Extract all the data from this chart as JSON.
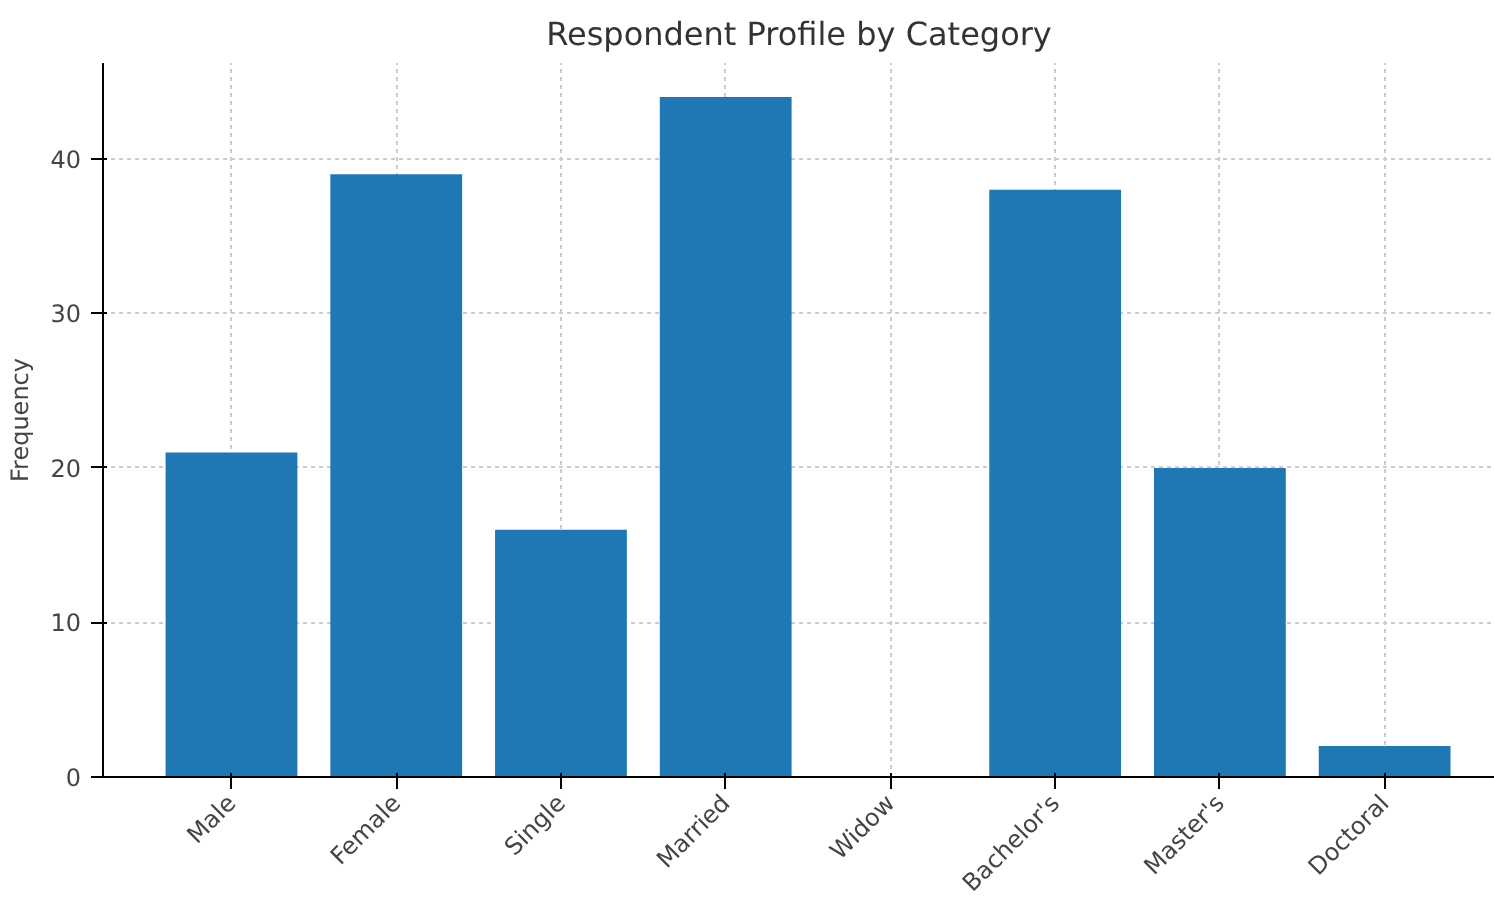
{
  "chart_data": {
    "type": "bar",
    "title": "Respondent Profile by Category",
    "ylabel": "Frequency",
    "categories": [
      "Male",
      "Female",
      "Single",
      "Married",
      "Widow",
      "Bachelor's",
      "Master's",
      "Doctoral"
    ],
    "values": [
      21,
      39,
      16,
      44,
      0,
      38,
      20,
      2
    ],
    "color": "#1f77b4",
    "ylim": [
      0,
      46.2
    ],
    "yticks": [
      0,
      10,
      20,
      30,
      40
    ],
    "grid": true
  }
}
